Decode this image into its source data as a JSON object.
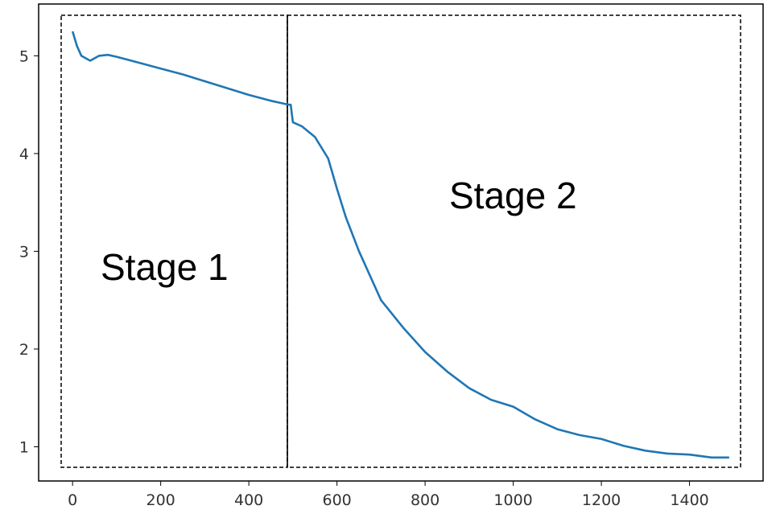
{
  "chart_data": {
    "type": "line",
    "x": [
      0,
      10,
      20,
      40,
      60,
      80,
      100,
      150,
      200,
      250,
      300,
      350,
      400,
      450,
      490,
      495,
      500,
      520,
      550,
      580,
      600,
      620,
      650,
      700,
      750,
      800,
      850,
      900,
      950,
      1000,
      1050,
      1100,
      1150,
      1200,
      1250,
      1300,
      1350,
      1400,
      1450,
      1490
    ],
    "series": [
      {
        "color": "#1f77b4",
        "values": [
          5.25,
          5.1,
          5.0,
          4.95,
          5.0,
          5.01,
          4.99,
          4.93,
          4.87,
          4.81,
          4.74,
          4.67,
          4.6,
          4.54,
          4.5,
          4.5,
          4.32,
          4.28,
          4.17,
          3.95,
          3.64,
          3.35,
          3.0,
          2.5,
          2.22,
          1.97,
          1.77,
          1.6,
          1.48,
          1.41,
          1.28,
          1.18,
          1.12,
          1.08,
          1.01,
          0.96,
          0.93,
          0.92,
          0.89,
          0.89
        ]
      }
    ],
    "xlim": [
      -77,
      1567
    ],
    "ylim": [
      0.65,
      5.53
    ],
    "xticks": [
      0,
      200,
      400,
      600,
      800,
      1000,
      1200,
      1400
    ],
    "yticks": [
      1,
      2,
      3,
      4,
      5
    ],
    "annotations": [
      "Stage 1",
      "Stage 2"
    ]
  }
}
